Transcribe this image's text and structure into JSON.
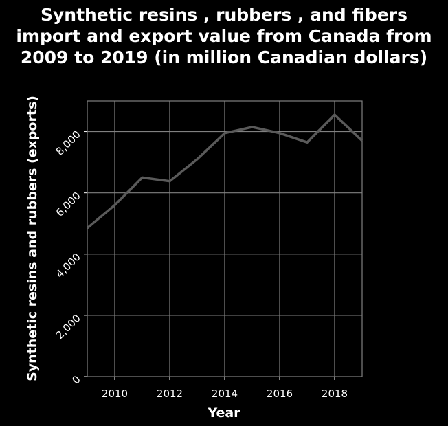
{
  "chart_data": {
    "type": "line",
    "title_lines": [
      "Synthetic resins , rubbers , and fibers",
      "import and export value from Canada from",
      "2009 to 2019 (in million Canadian dollars)"
    ],
    "xlabel": "Year",
    "ylabel": "Synthetic resins and rubbers (exports)",
    "x": [
      2009,
      2010,
      2011,
      2012,
      2013,
      2014,
      2015,
      2016,
      2017,
      2018,
      2019
    ],
    "series": [
      {
        "values": [
          4850,
          5600,
          6500,
          6380,
          7100,
          7950,
          8150,
          7950,
          7650,
          8550,
          7700
        ],
        "color": "#5a5a5a"
      }
    ],
    "xlim": [
      2009,
      2019
    ],
    "ylim": [
      0,
      9000
    ],
    "xticks": [
      2010,
      2012,
      2014,
      2016,
      2018
    ],
    "xtick_labels": [
      "2010",
      "2012",
      "2014",
      "2016",
      "2018"
    ],
    "yticks": [
      0,
      2000,
      4000,
      6000,
      8000
    ],
    "ytick_labels": [
      "0",
      "2,000",
      "4,000",
      "6,000",
      "8,000"
    ],
    "grid": true,
    "background": "#000000",
    "plot_background": "#000000",
    "grid_color": "#808080",
    "text_color": "#ffffff"
  }
}
